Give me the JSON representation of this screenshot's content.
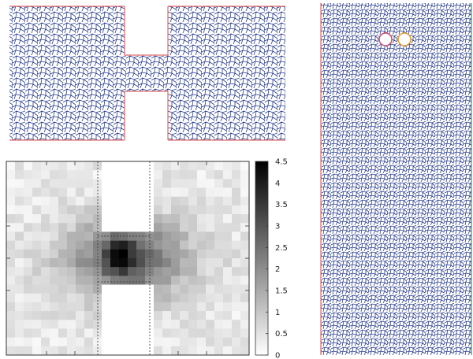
{
  "figure": {
    "panels": [
      {
        "id": "top-left",
        "description_label": "foam-in-constriction"
      },
      {
        "id": "bottom-left",
        "description_label": "density-map"
      },
      {
        "id": "right",
        "description_label": "tall-foam-channel"
      }
    ]
  },
  "colorbar": {
    "min": 0,
    "max": 4.5,
    "tick_labels": [
      "4.5",
      "4",
      "3.5",
      "3",
      "2.5",
      "2",
      "1.5",
      "1",
      "0.5",
      "0"
    ],
    "tick_values": [
      4.5,
      4,
      3.5,
      3,
      2.5,
      2,
      1.5,
      1,
      0.5,
      0
    ]
  },
  "colors": {
    "cell_edges": "#2b3f8f",
    "wall": "#e06a6a",
    "right_wall": "#3aa83a",
    "obstacle_left": "#d04b6a",
    "obstacle_right": "#e39a2d",
    "axis": "#333333"
  }
}
